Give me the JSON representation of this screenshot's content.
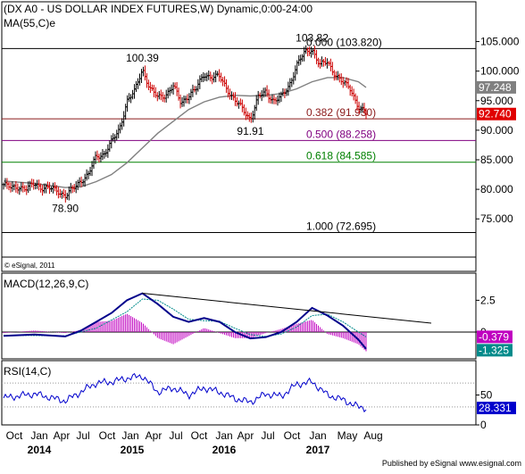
{
  "panels": {
    "price": {
      "title": "(DX A0 - US DOLLAR INDEX FUTURES,W) Dynamic,0:00-24:00",
      "ma_label": "MA(55,C)e",
      "watermark": "© eSignal, 2011",
      "price_ticks": [
        "105.000",
        "100.000",
        "95.000",
        "90.000",
        "85.000",
        "80.000",
        "75.000"
      ],
      "last_close_tag": "92.740",
      "ma_tag": "97.248"
    },
    "macd": {
      "label": "MACD(12,26,9,C)",
      "ticks": [
        "2.5",
        "0"
      ],
      "tags": [
        "-0.379",
        "-1.325"
      ]
    },
    "rsi": {
      "label": "RSI(14,C)",
      "ticks": [
        "50",
        "0"
      ],
      "tag": "28.331"
    }
  },
  "footer": {
    "credit": "Published by eSignal  www.esignal.com"
  },
  "colors": {
    "price_up": "#000000",
    "price_down": "#cc0000",
    "ma": "#808080",
    "fib_0": "#000000",
    "fib_382": "#8b1a1a",
    "fib_500": "#800080",
    "fib_618": "#008000",
    "fib_100": "#000000",
    "macd_line": "#00008b",
    "macd_signal": "#008b8b",
    "macd_hist": "#c000c0",
    "rsi_line": "#0000cc",
    "last_tag": "#e00000",
    "ma_tag": "#808080"
  },
  "chart_data": {
    "type": "candlestick",
    "timeframe": "weekly",
    "x_axis": {
      "month_labels": [
        "Oct",
        "Jan",
        "Apr",
        "Jul",
        "Oct",
        "Jan",
        "Apr",
        "Jul",
        "Oct",
        "Jan",
        "Apr",
        "Jul",
        "Oct",
        "Jan",
        "May",
        "Aug"
      ],
      "year_labels": [
        "2014",
        "2015",
        "2016",
        "2017"
      ]
    },
    "price_range": [
      70.5,
      107.5
    ],
    "price_path": [
      [
        "2013-09",
        80.8
      ],
      [
        "2013-10",
        80.2
      ],
      [
        "2013-11",
        80.5
      ],
      [
        "2013-12",
        80.0
      ],
      [
        "2014-01",
        81.0
      ],
      [
        "2014-02",
        80.3
      ],
      [
        "2014-03",
        80.1
      ],
      [
        "2014-04",
        79.8
      ],
      [
        "2014-05",
        78.9
      ],
      [
        "2014-06",
        80.0
      ],
      [
        "2014-07",
        81.5
      ],
      [
        "2014-08",
        82.5
      ],
      [
        "2014-09",
        85.5
      ],
      [
        "2014-10",
        86.0
      ],
      [
        "2014-11",
        88.0
      ],
      [
        "2014-12",
        90.0
      ],
      [
        "2015-01",
        95.0
      ],
      [
        "2015-02",
        96.5
      ],
      [
        "2015-03",
        100.39
      ],
      [
        "2015-04",
        97.0
      ],
      [
        "2015-05",
        95.5
      ],
      [
        "2015-06",
        96.0
      ],
      [
        "2015-07",
        97.5
      ],
      [
        "2015-08",
        94.5
      ],
      [
        "2015-09",
        96.0
      ],
      [
        "2015-10",
        97.0
      ],
      [
        "2015-11",
        99.5
      ],
      [
        "2015-12",
        99.0
      ],
      [
        "2016-01",
        99.0
      ],
      [
        "2016-02",
        97.0
      ],
      [
        "2016-03",
        95.0
      ],
      [
        "2016-04",
        93.5
      ],
      [
        "2016-05",
        91.91
      ],
      [
        "2016-06",
        95.5
      ],
      [
        "2016-07",
        96.5
      ],
      [
        "2016-08",
        95.0
      ],
      [
        "2016-09",
        95.5
      ],
      [
        "2016-10",
        97.5
      ],
      [
        "2016-11",
        101.0
      ],
      [
        "2016-12",
        103.0
      ],
      [
        "2017-01",
        103.82
      ],
      [
        "2017-02",
        101.0
      ],
      [
        "2017-03",
        101.5
      ],
      [
        "2017-04",
        99.5
      ],
      [
        "2017-05",
        98.0
      ],
      [
        "2017-06",
        97.0
      ],
      [
        "2017-07",
        94.0
      ],
      [
        "2017-08",
        92.74
      ]
    ],
    "ma55_path": [
      [
        "2013-09",
        81.4
      ],
      [
        "2014-01",
        81.0
      ],
      [
        "2014-05",
        80.3
      ],
      [
        "2014-07",
        80.4
      ],
      [
        "2014-09",
        81.3
      ],
      [
        "2014-11",
        82.5
      ],
      [
        "2015-01",
        84.5
      ],
      [
        "2015-03",
        87.0
      ],
      [
        "2015-05",
        89.5
      ],
      [
        "2015-07",
        91.5
      ],
      [
        "2015-09",
        93.5
      ],
      [
        "2015-11",
        94.8
      ],
      [
        "2016-01",
        95.6
      ],
      [
        "2016-03",
        95.9
      ],
      [
        "2016-05",
        95.8
      ],
      [
        "2016-07",
        95.9
      ],
      [
        "2016-09",
        96.2
      ],
      [
        "2016-11",
        97.0
      ],
      [
        "2017-01",
        98.2
      ],
      [
        "2017-03",
        98.9
      ],
      [
        "2017-05",
        98.9
      ],
      [
        "2017-07",
        98.2
      ],
      [
        "2017-08",
        97.248
      ]
    ],
    "swing_labels": [
      {
        "label": "78.90",
        "date": "2014-05",
        "value": 78.9,
        "pos": "below"
      },
      {
        "label": "100.39",
        "date": "2015-03",
        "value": 100.39,
        "pos": "above"
      },
      {
        "label": "91.91",
        "date": "2016-05",
        "value": 91.91,
        "pos": "below"
      },
      {
        "label": "103.82",
        "date": "2017-01",
        "value": 103.82,
        "pos": "above"
      }
    ],
    "fibonacci": [
      {
        "label": "0.000 (103.820)",
        "level": 103.82,
        "color": "#000000"
      },
      {
        "label": "0.382 (91.930)",
        "level": 91.93,
        "color": "#8b1a1a"
      },
      {
        "label": "0.500 (88.258)",
        "level": 88.258,
        "color": "#800080"
      },
      {
        "label": "0.618 (84.585)",
        "level": 84.585,
        "color": "#008000"
      },
      {
        "label": "1.000 (72.695)",
        "level": 72.695,
        "color": "#000000"
      }
    ],
    "macd": {
      "params": [
        12,
        26,
        9
      ],
      "range": [
        -1.9,
        3.3
      ],
      "macd_path": [
        [
          "2013-09",
          -0.3
        ],
        [
          "2014-01",
          -0.2
        ],
        [
          "2014-05",
          -0.35
        ],
        [
          "2014-07",
          0.1
        ],
        [
          "2014-09",
          0.8
        ],
        [
          "2014-11",
          1.5
        ],
        [
          "2015-01",
          2.5
        ],
        [
          "2015-03",
          3.05
        ],
        [
          "2015-05",
          2.2
        ],
        [
          "2015-07",
          1.2
        ],
        [
          "2015-09",
          0.8
        ],
        [
          "2015-11",
          1.1
        ],
        [
          "2016-01",
          0.8
        ],
        [
          "2016-03",
          0.0
        ],
        [
          "2016-05",
          -0.5
        ],
        [
          "2016-07",
          -0.4
        ],
        [
          "2016-09",
          0.0
        ],
        [
          "2016-11",
          0.8
        ],
        [
          "2017-01",
          1.9
        ],
        [
          "2017-03",
          1.3
        ],
        [
          "2017-05",
          0.5
        ],
        [
          "2017-07",
          -0.6
        ],
        [
          "2017-08",
          -1.325
        ]
      ],
      "signal_path": [
        [
          "2013-09",
          -0.25
        ],
        [
          "2014-05",
          -0.3
        ],
        [
          "2014-09",
          0.3
        ],
        [
          "2015-01",
          1.6
        ],
        [
          "2015-03",
          2.6
        ],
        [
          "2015-05",
          2.5
        ],
        [
          "2015-07",
          1.8
        ],
        [
          "2015-09",
          1.0
        ],
        [
          "2015-11",
          0.9
        ],
        [
          "2016-01",
          0.85
        ],
        [
          "2016-03",
          0.3
        ],
        [
          "2016-05",
          -0.2
        ],
        [
          "2016-07",
          -0.35
        ],
        [
          "2016-09",
          -0.15
        ],
        [
          "2016-11",
          0.4
        ],
        [
          "2017-01",
          1.3
        ],
        [
          "2017-03",
          1.4
        ],
        [
          "2017-05",
          0.8
        ],
        [
          "2017-07",
          0.0
        ],
        [
          "2017-08",
          -0.379
        ]
      ],
      "trendline": [
        [
          "2015-03",
          3.05
        ],
        [
          "2017-10",
          0.3
        ]
      ]
    },
    "rsi": {
      "period": 14,
      "range": [
        0,
        100
      ],
      "reference_levels": [
        70,
        30
      ],
      "rsi_path": [
        [
          "2013-09",
          45
        ],
        [
          "2014-01",
          52
        ],
        [
          "2014-05",
          40
        ],
        [
          "2014-07",
          55
        ],
        [
          "2014-09",
          70
        ],
        [
          "2014-11",
          72
        ],
        [
          "2015-01",
          78
        ],
        [
          "2015-03",
          82
        ],
        [
          "2015-05",
          55
        ],
        [
          "2015-07",
          62
        ],
        [
          "2015-09",
          50
        ],
        [
          "2015-11",
          62
        ],
        [
          "2016-01",
          55
        ],
        [
          "2016-03",
          44
        ],
        [
          "2016-05",
          38
        ],
        [
          "2016-07",
          52
        ],
        [
          "2016-09",
          48
        ],
        [
          "2016-11",
          68
        ],
        [
          "2017-01",
          72
        ],
        [
          "2017-03",
          50
        ],
        [
          "2017-05",
          42
        ],
        [
          "2017-07",
          30
        ],
        [
          "2017-08",
          28.331
        ]
      ]
    }
  }
}
